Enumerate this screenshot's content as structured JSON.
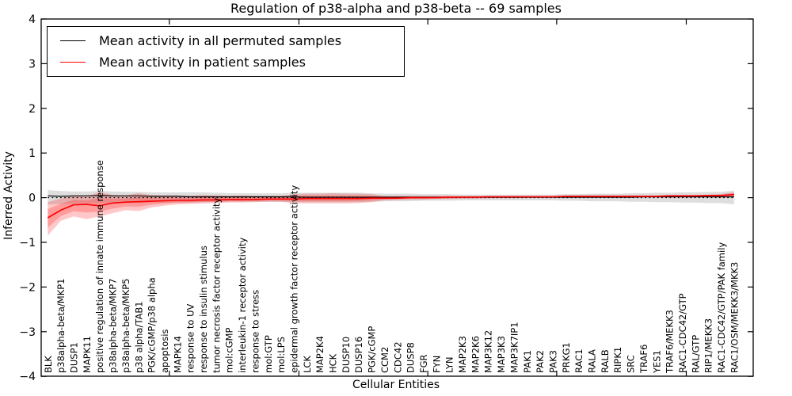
{
  "chart_data": {
    "type": "line",
    "title": "Regulation of p38-alpha and p38-beta -- 69 samples",
    "xlabel": "Cellular Entities",
    "ylabel": "Inferred Activity",
    "ylim": [
      -4,
      4
    ],
    "yticks": [
      -4,
      -3,
      -2,
      -1,
      0,
      1,
      2,
      3,
      4
    ],
    "grid": false,
    "legend_position": "upper left",
    "zero_reference_line": 0,
    "categories": [
      "BLK",
      "p38alpha-beta/MKP1",
      "DUSP1",
      "MAPK11",
      "positive regulation of innate immune response",
      "p38alpha-beta/MKP7",
      "p38alpha-beta/MKP5",
      "p38 alpha/TAB1",
      "PGK/cGMP/p38 alpha",
      "apoptosis",
      "MAPK14",
      "response to UV",
      "response to insulin stimulus",
      "tumor necrosis factor receptor activity",
      "mol:cGMP",
      "interleukin-1 receptor activity",
      "response to stress",
      "mol:GTP",
      "mol:LPS",
      "epidermal growth factor receptor activity",
      "LCK",
      "MAP2K4",
      "HCK",
      "DUSP10",
      "DUSP16",
      "PGK/cGMP",
      "CCM2",
      "CDC42",
      "DUSP8",
      "FGR",
      "FYN",
      "LYN",
      "MAP2K3",
      "MAP2K6",
      "MAP3K12",
      "MAP3K3",
      "MAP3K7IP1",
      "PAK1",
      "PAK2",
      "PAK3",
      "PRKG1",
      "RAC1",
      "RALA",
      "RALB",
      "RIPK1",
      "SRC",
      "TRAF6",
      "YES1",
      "TRAF6/MEKK3",
      "RAC1-CDC42/GTP",
      "RAL/GTP",
      "RIP1/MEKK3",
      "RAC1-CDC42/GTP/PAK family",
      "RAC1/OSM/MEKK3/MKK3"
    ],
    "series": [
      {
        "name": "Mean activity in all permuted samples",
        "color": "#000000",
        "band_color": "rgba(0,0,0,0.13)",
        "values": [
          0.04,
          0.03,
          0.04,
          0.04,
          0.05,
          0.04,
          0.04,
          0.04,
          0.03,
          0.03,
          0.03,
          0.02,
          0.02,
          0.02,
          0.02,
          0.02,
          0.02,
          0.02,
          0.02,
          0.02,
          0.01,
          0.01,
          0.01,
          0.01,
          0.01,
          0.01,
          0.01,
          0.01,
          0.01,
          0.01,
          0.01,
          0.01,
          0.01,
          0.01,
          0.01,
          0.01,
          0.01,
          0.01,
          0.01,
          0.01,
          0.01,
          0.01,
          0.01,
          0.01,
          0.01,
          0.01,
          0.02,
          0.02,
          0.02,
          0.02,
          0.02,
          0.02,
          0.02,
          0.02
        ],
        "band_upper": [
          0.17,
          0.15,
          0.14,
          0.14,
          0.15,
          0.14,
          0.13,
          0.13,
          0.12,
          0.12,
          0.12,
          0.12,
          0.12,
          0.11,
          0.1,
          0.1,
          0.1,
          0.1,
          0.1,
          0.11,
          0.11,
          0.11,
          0.11,
          0.11,
          0.11,
          0.1,
          0.09,
          0.09,
          0.09,
          0.08,
          0.08,
          0.08,
          0.07,
          0.07,
          0.07,
          0.07,
          0.07,
          0.07,
          0.07,
          0.07,
          0.08,
          0.08,
          0.09,
          0.09,
          0.09,
          0.1,
          0.1,
          0.11,
          0.11,
          0.12,
          0.12,
          0.13,
          0.13,
          0.16
        ],
        "band_lower": [
          -0.15,
          -0.14,
          -0.13,
          -0.13,
          -0.13,
          -0.12,
          -0.12,
          -0.12,
          -0.11,
          -0.11,
          -0.11,
          -0.11,
          -0.1,
          -0.1,
          -0.09,
          -0.09,
          -0.09,
          -0.09,
          -0.09,
          -0.1,
          -0.1,
          -0.1,
          -0.1,
          -0.1,
          -0.1,
          -0.09,
          -0.08,
          -0.08,
          -0.08,
          -0.07,
          -0.07,
          -0.07,
          -0.06,
          -0.06,
          -0.06,
          -0.06,
          -0.06,
          -0.06,
          -0.06,
          -0.06,
          -0.07,
          -0.07,
          -0.08,
          -0.08,
          -0.08,
          -0.09,
          -0.09,
          -0.1,
          -0.1,
          -0.11,
          -0.11,
          -0.12,
          -0.12,
          -0.15
        ]
      },
      {
        "name": "Mean activity in patient samples",
        "color": "#ff0000",
        "band_color": "rgba(255,0,0,0.22)",
        "values": [
          -0.45,
          -0.28,
          -0.16,
          -0.15,
          -0.18,
          -0.12,
          -0.1,
          -0.09,
          -0.08,
          -0.07,
          -0.06,
          -0.06,
          -0.05,
          -0.05,
          -0.04,
          -0.04,
          -0.04,
          -0.03,
          -0.03,
          -0.03,
          -0.02,
          -0.02,
          -0.02,
          -0.02,
          -0.02,
          -0.01,
          -0.01,
          -0.01,
          0.0,
          0.0,
          0.0,
          0.01,
          0.01,
          0.01,
          0.02,
          0.02,
          0.02,
          0.02,
          0.02,
          0.02,
          0.03,
          0.03,
          0.03,
          0.03,
          0.03,
          0.03,
          0.03,
          0.03,
          0.04,
          0.04,
          0.04,
          0.05,
          0.05,
          0.07
        ],
        "band_upper": [
          -0.1,
          -0.02,
          0.04,
          0.02,
          0.13,
          0.06,
          0.05,
          0.1,
          0.06,
          0.05,
          0.05,
          0.04,
          0.06,
          0.05,
          0.04,
          0.05,
          0.04,
          0.04,
          0.04,
          0.08,
          0.09,
          0.09,
          0.1,
          0.09,
          0.09,
          0.08,
          0.04,
          0.04,
          0.04,
          0.04,
          0.04,
          0.04,
          0.04,
          0.04,
          0.04,
          0.04,
          0.04,
          0.04,
          0.04,
          0.04,
          0.05,
          0.05,
          0.05,
          0.05,
          0.05,
          0.05,
          0.05,
          0.05,
          0.06,
          0.06,
          0.06,
          0.07,
          0.08,
          0.12
        ],
        "band_lower": [
          -0.85,
          -0.52,
          -0.42,
          -0.48,
          -0.42,
          -0.35,
          -0.28,
          -0.3,
          -0.22,
          -0.18,
          -0.15,
          -0.14,
          -0.13,
          -0.12,
          -0.11,
          -0.11,
          -0.1,
          -0.09,
          -0.09,
          -0.12,
          -0.13,
          -0.13,
          -0.13,
          -0.13,
          -0.12,
          -0.1,
          -0.06,
          -0.05,
          -0.04,
          -0.04,
          -0.03,
          -0.03,
          -0.02,
          -0.02,
          -0.01,
          -0.01,
          -0.01,
          0.0,
          0.0,
          0.0,
          0.01,
          0.01,
          0.01,
          0.01,
          0.01,
          0.01,
          0.01,
          0.01,
          0.02,
          0.02,
          0.02,
          0.02,
          0.02,
          0.02
        ]
      }
    ]
  }
}
